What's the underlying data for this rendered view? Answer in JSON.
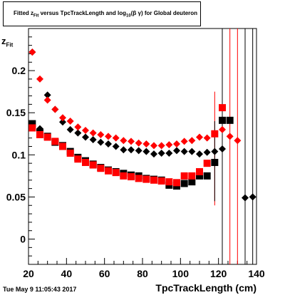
{
  "chart_data": {
    "type": "scatter",
    "title": "Fitted z_Fit versus TpcTrackLength and log10(β γ) for Global deuteron",
    "title_parts": {
      "prefix": "Fitted  z",
      "sub1": "Fit",
      "mid": "  versus  TpcTrackLength and log",
      "sub2": "10",
      "suffix": "(β γ) for Global deuteron"
    },
    "xlabel": "TpcTrackLength (cm)",
    "ylabel": "z",
    "ylabel_sub": "Fit",
    "xlim": [
      20,
      140
    ],
    "ylim": [
      -0.03,
      0.25
    ],
    "x_ticks": [
      20,
      40,
      60,
      80,
      100,
      120,
      140
    ],
    "y_ticks": [
      0,
      0.05,
      0.1,
      0.15,
      0.2
    ],
    "y_tick_labels": [
      "0",
      "0.05",
      "0.1",
      "0.15",
      "0.2"
    ],
    "grid": false,
    "timestamp": "Tue May  9 11:05:43 2017",
    "series": [
      {
        "marker": "diamond",
        "color": "#000000",
        "x": [
          22,
          26,
          30,
          34,
          38,
          42,
          46,
          50,
          54,
          58,
          62,
          66,
          70,
          74,
          78,
          82,
          86,
          90,
          94,
          98,
          102,
          106,
          110,
          114,
          118,
          122,
          134,
          138
        ],
        "y": [
          0.222,
          0.131,
          0.171,
          0.154,
          0.139,
          0.13,
          0.126,
          0.121,
          0.118,
          0.115,
          0.113,
          0.11,
          0.106,
          0.106,
          0.105,
          0.104,
          0.101,
          0.102,
          0.102,
          0.105,
          0.104,
          0.104,
          0.101,
          0.103,
          0.104,
          0.107,
          0.049,
          0.05
        ]
      },
      {
        "marker": "diamond",
        "color": "#ff0000",
        "x": [
          22,
          26,
          30,
          34,
          38,
          42,
          46,
          50,
          54,
          58,
          62,
          66,
          70,
          74,
          78,
          82,
          86,
          90,
          94,
          98,
          102,
          106,
          110,
          114,
          118,
          122,
          126,
          130
        ],
        "y": [
          0.222,
          0.19,
          0.165,
          0.154,
          0.144,
          0.14,
          0.133,
          0.129,
          0.126,
          0.124,
          0.122,
          0.12,
          0.117,
          0.116,
          0.114,
          0.113,
          0.111,
          0.111,
          0.112,
          0.113,
          0.116,
          0.117,
          0.121,
          0.12,
          0.125,
          0.13,
          0.122,
          0.117
        ]
      },
      {
        "marker": "square",
        "color": "#000000",
        "x": [
          22,
          26,
          30,
          34,
          38,
          42,
          46,
          50,
          54,
          58,
          62,
          66,
          70,
          74,
          78,
          82,
          86,
          90,
          94,
          98,
          102,
          106,
          110,
          114,
          118,
          122,
          126
        ],
        "y": [
          0.137,
          0.127,
          0.122,
          0.115,
          0.111,
          0.104,
          0.097,
          0.093,
          0.089,
          0.085,
          0.082,
          0.08,
          0.078,
          0.076,
          0.075,
          0.072,
          0.071,
          0.07,
          0.064,
          0.063,
          0.066,
          0.068,
          0.075,
          0.075,
          0.091,
          0.141,
          0.141
        ]
      },
      {
        "marker": "square",
        "color": "#ff0000",
        "x": [
          22,
          26,
          30,
          34,
          38,
          42,
          46,
          50,
          54,
          58,
          62,
          66,
          70,
          74,
          78,
          82,
          86,
          90,
          94,
          98,
          102,
          106,
          110,
          114,
          118,
          122
        ],
        "y": [
          0.132,
          0.124,
          0.121,
          0.116,
          0.11,
          0.102,
          0.095,
          0.091,
          0.088,
          0.084,
          0.081,
          0.079,
          0.075,
          0.074,
          0.072,
          0.071,
          0.07,
          0.069,
          0.068,
          0.067,
          0.075,
          0.075,
          0.08,
          0.09,
          0.125,
          0.156
        ]
      }
    ],
    "error_bars": [
      {
        "x": 118,
        "color": "#ff0000",
        "low": 0.04,
        "high": 0.175
      },
      {
        "x": 122,
        "color": "#ff0000",
        "low": 0.065,
        "high": 0.25
      },
      {
        "x": 126,
        "color": "#ff0000",
        "low": -0.03,
        "high": 0.25
      },
      {
        "x": 130,
        "color": "#ff0000",
        "low": -0.03,
        "high": 0.25
      },
      {
        "x": 122,
        "color": "#000000",
        "low": -0.03,
        "high": 0.25
      },
      {
        "x": 134,
        "color": "#000000",
        "low": -0.03,
        "high": 0.25
      },
      {
        "x": 138,
        "color": "#000000",
        "low": -0.03,
        "high": 0.25
      },
      {
        "x": 118,
        "color": "#000000",
        "low": 0.045,
        "high": 0.14
      }
    ]
  }
}
